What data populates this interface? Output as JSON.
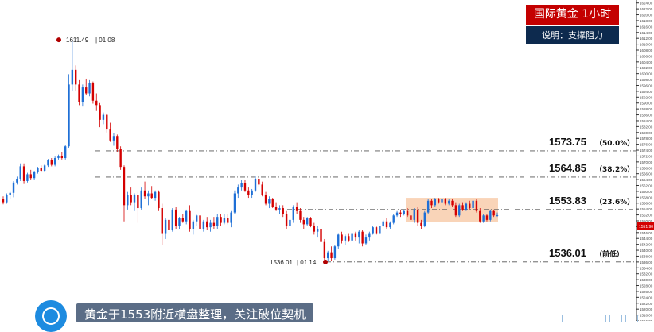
{
  "header": {
    "title": "国际黄金  1小时",
    "subtitle": "说明：支撑阻力"
  },
  "footer": {
    "caption": "黄金于1553附近横盘整理，关注破位契机"
  },
  "colors": {
    "up": "#1e6fd6",
    "down": "#d40000",
    "marker": "#b00000",
    "dashline": "#555555",
    "range_fill": "#f7c9a6",
    "title_bg": "#c40000",
    "subtitle_bg": "#0d2a4e"
  },
  "chart_data": {
    "type": "candlestick",
    "timeframe": "1小时",
    "ylim": [
      1516,
      1625
    ],
    "y_ticks": [
      "1624.00",
      "1622.00",
      "1620.00",
      "1618.00",
      "1616.00",
      "1614.00",
      "1612.00",
      "1610.00",
      "1608.00",
      "1606.00",
      "1604.00",
      "1602.00",
      "1600.00",
      "1598.00",
      "1596.00",
      "1594.00",
      "1592.00",
      "1590.00",
      "1588.00",
      "1586.00",
      "1584.00",
      "1582.00",
      "1580.00",
      "1578.00",
      "1576.00",
      "1574.00",
      "1572.00",
      "1570.00",
      "1568.00",
      "1566.00",
      "1564.00",
      "1562.00",
      "1560.00",
      "1558.00",
      "1556.00",
      "1554.00",
      "1552.00",
      "1550.00",
      "1548.00",
      "1546.00",
      "1544.00",
      "1542.00",
      "1540.00",
      "1538.00",
      "1536.00",
      "1534.00",
      "1532.00",
      "1530.00",
      "1528.00",
      "1526.00",
      "1524.00",
      "1522.00",
      "1520.00",
      "1518.00",
      "1516.00"
    ],
    "current_price": "1551.90",
    "levels": [
      {
        "price": "1573.75",
        "note": "（50.0%）"
      },
      {
        "price": "1564.85",
        "note": "（38.2%）"
      },
      {
        "price": "1553.83",
        "note": "（23.6%）"
      },
      {
        "price": "1536.01",
        "note": "（前低）"
      }
    ],
    "annotations": [
      {
        "text": "1611.49",
        "date": "01.08",
        "value": 1611.49
      },
      {
        "text": "1536.01",
        "date": "01.14",
        "value": 1536.01
      }
    ],
    "consolidation_range": [
      1549.5,
      1557.8
    ],
    "candles": [
      [
        1557.3,
        1558.3,
        1555.6,
        1556.3
      ],
      [
        1556.3,
        1559.3,
        1555.8,
        1558.8
      ],
      [
        1558.8,
        1560.3,
        1557.3,
        1559.5
      ],
      [
        1559.5,
        1563.5,
        1558.0,
        1563.0
      ],
      [
        1563.0,
        1565.0,
        1562.3,
        1564.3
      ],
      [
        1564.3,
        1569.5,
        1563.5,
        1568.5
      ],
      [
        1568.5,
        1569.5,
        1562.5,
        1563.5
      ],
      [
        1563.5,
        1566.3,
        1563.0,
        1565.8
      ],
      [
        1565.8,
        1567.3,
        1563.8,
        1564.5
      ],
      [
        1564.5,
        1567.0,
        1564.0,
        1566.5
      ],
      [
        1566.5,
        1568.3,
        1566.0,
        1567.8
      ],
      [
        1567.8,
        1568.8,
        1566.5,
        1567.0
      ],
      [
        1567.0,
        1569.3,
        1566.5,
        1568.8
      ],
      [
        1568.8,
        1571.0,
        1568.3,
        1570.5
      ],
      [
        1570.5,
        1571.3,
        1568.5,
        1569.0
      ],
      [
        1569.0,
        1571.8,
        1568.5,
        1571.3
      ],
      [
        1571.3,
        1572.5,
        1570.8,
        1572.0
      ],
      [
        1572.0,
        1573.3,
        1570.8,
        1571.3
      ],
      [
        1571.3,
        1575.8,
        1570.8,
        1575.3
      ],
      [
        1575.3,
        1599.8,
        1574.8,
        1596.3
      ],
      [
        1596.3,
        1611.5,
        1594.0,
        1601.3
      ],
      [
        1601.3,
        1602.8,
        1594.3,
        1596.3
      ],
      [
        1596.3,
        1597.8,
        1589.3,
        1590.3
      ],
      [
        1590.3,
        1596.3,
        1588.8,
        1595.3
      ],
      [
        1595.3,
        1598.3,
        1592.8,
        1593.3
      ],
      [
        1593.3,
        1597.8,
        1592.3,
        1596.8
      ],
      [
        1596.8,
        1597.3,
        1589.8,
        1590.8
      ],
      [
        1590.8,
        1593.3,
        1587.3,
        1589.3
      ],
      [
        1589.3,
        1590.0,
        1581.8,
        1584.3
      ],
      [
        1584.3,
        1586.8,
        1582.8,
        1586.0
      ],
      [
        1586.0,
        1586.5,
        1580.0,
        1581.0
      ],
      [
        1581.0,
        1583.3,
        1576.8,
        1577.3
      ],
      [
        1577.3,
        1579.8,
        1575.5,
        1578.8
      ],
      [
        1578.8,
        1579.3,
        1573.3,
        1574.3
      ],
      [
        1574.3,
        1575.3,
        1567.3,
        1568.3
      ],
      [
        1568.3,
        1568.8,
        1549.8,
        1555.3
      ],
      [
        1555.3,
        1559.8,
        1553.8,
        1558.8
      ],
      [
        1558.8,
        1561.3,
        1555.3,
        1556.3
      ],
      [
        1556.3,
        1559.3,
        1553.3,
        1558.8
      ],
      [
        1558.8,
        1559.8,
        1549.3,
        1554.3
      ],
      [
        1554.3,
        1561.3,
        1553.8,
        1560.3
      ],
      [
        1560.3,
        1563.3,
        1557.3,
        1558.3
      ],
      [
        1558.3,
        1560.3,
        1555.3,
        1559.3
      ],
      [
        1559.3,
        1561.8,
        1557.3,
        1557.8
      ],
      [
        1557.8,
        1560.3,
        1556.8,
        1559.8
      ],
      [
        1559.8,
        1560.3,
        1553.3,
        1554.3
      ],
      [
        1554.3,
        1555.8,
        1541.8,
        1545.8
      ],
      [
        1545.8,
        1550.8,
        1543.8,
        1550.3
      ],
      [
        1550.3,
        1552.8,
        1544.3,
        1546.8
      ],
      [
        1546.8,
        1554.3,
        1546.3,
        1553.8
      ],
      [
        1553.8,
        1554.8,
        1547.3,
        1548.3
      ],
      [
        1548.3,
        1551.3,
        1547.3,
        1550.8
      ],
      [
        1550.8,
        1552.3,
        1549.3,
        1549.8
      ],
      [
        1549.8,
        1553.8,
        1548.8,
        1553.3
      ],
      [
        1553.3,
        1555.3,
        1546.3,
        1547.3
      ],
      [
        1547.3,
        1550.3,
        1545.3,
        1549.8
      ],
      [
        1549.8,
        1552.3,
        1548.3,
        1551.8
      ],
      [
        1551.8,
        1552.8,
        1546.3,
        1547.3
      ],
      [
        1547.3,
        1550.3,
        1546.3,
        1549.8
      ],
      [
        1549.8,
        1551.3,
        1546.8,
        1547.8
      ],
      [
        1547.8,
        1550.3,
        1546.3,
        1549.3
      ],
      [
        1549.3,
        1551.3,
        1547.3,
        1548.3
      ],
      [
        1548.3,
        1552.3,
        1547.3,
        1551.3
      ],
      [
        1551.3,
        1552.3,
        1548.3,
        1549.3
      ],
      [
        1549.3,
        1552.3,
        1548.8,
        1550.8
      ],
      [
        1550.8,
        1552.3,
        1548.8,
        1549.3
      ],
      [
        1549.3,
        1553.3,
        1547.8,
        1552.8
      ],
      [
        1552.8,
        1560.3,
        1552.3,
        1559.3
      ],
      [
        1559.3,
        1562.3,
        1557.8,
        1561.3
      ],
      [
        1561.3,
        1563.8,
        1560.3,
        1562.8
      ],
      [
        1562.8,
        1563.8,
        1559.8,
        1560.3
      ],
      [
        1560.3,
        1561.3,
        1557.8,
        1558.8
      ],
      [
        1558.8,
        1560.8,
        1557.8,
        1560.3
      ],
      [
        1560.3,
        1565.3,
        1559.8,
        1564.3
      ],
      [
        1564.3,
        1564.8,
        1561.3,
        1562.3
      ],
      [
        1562.3,
        1563.3,
        1558.3,
        1558.8
      ],
      [
        1558.8,
        1559.8,
        1555.3,
        1555.8
      ],
      [
        1555.8,
        1558.3,
        1554.3,
        1557.3
      ],
      [
        1557.3,
        1557.8,
        1554.3,
        1554.8
      ],
      [
        1554.8,
        1556.3,
        1553.3,
        1553.8
      ],
      [
        1553.8,
        1555.3,
        1552.3,
        1554.3
      ],
      [
        1554.3,
        1555.3,
        1551.3,
        1552.3
      ],
      [
        1552.3,
        1553.3,
        1547.3,
        1548.3
      ],
      [
        1548.3,
        1551.3,
        1547.3,
        1550.3
      ],
      [
        1550.3,
        1555.3,
        1549.3,
        1554.8
      ],
      [
        1554.8,
        1556.3,
        1552.3,
        1553.3
      ],
      [
        1553.3,
        1554.3,
        1549.3,
        1550.3
      ],
      [
        1550.3,
        1551.3,
        1547.3,
        1548.8
      ],
      [
        1548.8,
        1551.3,
        1548.3,
        1550.8
      ],
      [
        1550.8,
        1551.3,
        1547.8,
        1548.3
      ],
      [
        1548.3,
        1549.3,
        1545.3,
        1546.3
      ],
      [
        1546.3,
        1548.3,
        1544.3,
        1547.3
      ],
      [
        1547.3,
        1547.8,
        1542.3,
        1542.8
      ],
      [
        1542.8,
        1543.8,
        1535.8,
        1537.3
      ],
      [
        1537.3,
        1539.8,
        1536.3,
        1539.3
      ],
      [
        1539.3,
        1541.3,
        1536.3,
        1537.3
      ],
      [
        1537.3,
        1541.8,
        1536.8,
        1541.3
      ],
      [
        1541.3,
        1545.8,
        1540.3,
        1545.3
      ],
      [
        1545.3,
        1546.3,
        1542.3,
        1543.3
      ],
      [
        1543.3,
        1545.3,
        1541.8,
        1544.8
      ],
      [
        1544.8,
        1545.8,
        1542.8,
        1543.3
      ],
      [
        1543.3,
        1546.3,
        1542.8,
        1545.8
      ],
      [
        1545.8,
        1546.3,
        1543.3,
        1544.3
      ],
      [
        1544.3,
        1546.8,
        1542.3,
        1546.3
      ],
      [
        1546.3,
        1546.8,
        1541.3,
        1542.3
      ],
      [
        1542.3,
        1545.3,
        1541.8,
        1544.3
      ],
      [
        1544.3,
        1546.3,
        1543.3,
        1545.8
      ],
      [
        1545.8,
        1548.3,
        1545.3,
        1547.8
      ],
      [
        1547.8,
        1548.3,
        1545.3,
        1545.8
      ],
      [
        1545.8,
        1548.3,
        1545.3,
        1548.3
      ],
      [
        1548.3,
        1550.3,
        1547.8,
        1549.8
      ],
      [
        1549.8,
        1550.8,
        1547.3,
        1547.8
      ],
      [
        1547.8,
        1549.8,
        1547.3,
        1549.3
      ],
      [
        1549.3,
        1552.3,
        1548.8,
        1551.8
      ],
      [
        1551.8,
        1553.3,
        1551.3,
        1552.8
      ],
      [
        1552.8,
        1553.8,
        1551.3,
        1552.3
      ],
      [
        1552.3,
        1553.8,
        1551.8,
        1553.3
      ],
      [
        1553.3,
        1554.3,
        1551.3,
        1551.8
      ],
      [
        1551.8,
        1552.3,
        1549.8,
        1550.3
      ],
      [
        1550.3,
        1554.3,
        1549.3,
        1553.8
      ],
      [
        1553.8,
        1554.8,
        1548.3,
        1549.3
      ],
      [
        1549.3,
        1550.3,
        1547.3,
        1548.3
      ],
      [
        1548.3,
        1553.3,
        1547.8,
        1552.8
      ],
      [
        1552.8,
        1557.3,
        1552.3,
        1556.8
      ],
      [
        1556.8,
        1557.3,
        1554.3,
        1555.3
      ],
      [
        1555.3,
        1557.8,
        1554.8,
        1557.3
      ],
      [
        1557.3,
        1557.8,
        1555.8,
        1556.3
      ],
      [
        1556.3,
        1557.8,
        1555.8,
        1557.3
      ],
      [
        1557.3,
        1557.8,
        1555.3,
        1555.8
      ],
      [
        1555.8,
        1557.3,
        1555.3,
        1556.8
      ],
      [
        1556.8,
        1557.3,
        1554.8,
        1555.3
      ],
      [
        1555.3,
        1556.3,
        1551.3,
        1551.8
      ],
      [
        1551.8,
        1555.8,
        1551.3,
        1555.3
      ],
      [
        1555.3,
        1556.3,
        1553.3,
        1553.8
      ],
      [
        1553.8,
        1556.3,
        1553.3,
        1555.8
      ],
      [
        1555.8,
        1556.8,
        1553.8,
        1554.3
      ],
      [
        1554.3,
        1557.3,
        1553.8,
        1556.8
      ],
      [
        1556.8,
        1557.3,
        1552.8,
        1553.3
      ],
      [
        1553.3,
        1554.3,
        1549.3,
        1549.8
      ],
      [
        1549.8,
        1552.3,
        1549.3,
        1551.8
      ],
      [
        1551.8,
        1552.3,
        1549.8,
        1550.3
      ],
      [
        1550.3,
        1553.8,
        1549.8,
        1553.3
      ],
      [
        1553.3,
        1553.8,
        1551.3,
        1551.8
      ],
      [
        1551.8,
        1552.8,
        1551.3,
        1551.9
      ]
    ]
  }
}
